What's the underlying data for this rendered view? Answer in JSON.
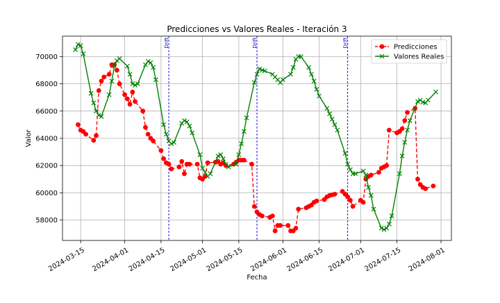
{
  "chart_data": {
    "type": "line",
    "title": "Predicciones vs Valores Reales - Iteración 3",
    "xlabel": "Fecha",
    "ylabel": "Valor",
    "xlim": [
      "2024-03-08",
      "2024-08-05"
    ],
    "ylim": [
      56500,
      71500
    ],
    "xticks": [
      "2024-03-15",
      "2024-04-01",
      "2024-04-15",
      "2024-05-01",
      "2024-05-15",
      "2024-06-01",
      "2024-06-15",
      "2024-07-01",
      "2024-07-15",
      "2024-08-01"
    ],
    "yticks": [
      58000,
      60000,
      62000,
      64000,
      66000,
      68000,
      70000
    ],
    "ytick_labels": [
      "58000",
      "60000",
      "62000",
      "64000",
      "66000",
      "68000",
      "70000"
    ],
    "grid": true,
    "legend": "top-right",
    "drift_label": "Drift",
    "drift_dates": [
      "2024-04-18",
      "2024-05-22",
      "2024-06-26"
    ],
    "series": [
      {
        "name": "Predicciones",
        "color": "#ff0000",
        "style": "dashed",
        "marker": "circle",
        "points": [
          [
            "2024-03-14",
            65000
          ],
          [
            "2024-03-15",
            64600
          ],
          [
            "2024-03-16",
            64500
          ],
          [
            "2024-03-17",
            64300
          ],
          [
            "2024-03-20",
            63850
          ],
          [
            "2024-03-21",
            64200
          ],
          [
            "2024-03-22",
            67500
          ],
          [
            "2024-03-23",
            68200
          ],
          [
            "2024-03-24",
            68500
          ],
          [
            "2024-03-26",
            68700
          ],
          [
            "2024-03-27",
            69400
          ],
          [
            "2024-03-28",
            69400
          ],
          [
            "2024-03-29",
            69000
          ],
          [
            "2024-03-30",
            68000
          ],
          [
            "2024-04-01",
            67200
          ],
          [
            "2024-04-02",
            66900
          ],
          [
            "2024-04-03",
            66500
          ],
          [
            "2024-04-04",
            67400
          ],
          [
            "2024-04-05",
            66700
          ],
          [
            "2024-04-08",
            66000
          ],
          [
            "2024-04-09",
            64800
          ],
          [
            "2024-04-10",
            64300
          ],
          [
            "2024-04-11",
            64000
          ],
          [
            "2024-04-12",
            63800
          ],
          [
            "2024-04-15",
            63100
          ],
          [
            "2024-04-16",
            62500
          ],
          [
            "2024-04-17",
            62200
          ],
          [
            "2024-04-18",
            62100
          ],
          [
            "2024-04-19",
            61750
          ],
          [
            "2024-04-22",
            61900
          ],
          [
            "2024-04-23",
            62300
          ],
          [
            "2024-04-24",
            61400
          ],
          [
            "2024-04-25",
            62100
          ],
          [
            "2024-04-26",
            62100
          ],
          [
            "2024-04-29",
            62100
          ],
          [
            "2024-04-30",
            61100
          ],
          [
            "2024-05-01",
            61000
          ],
          [
            "2024-05-02",
            61200
          ],
          [
            "2024-05-03",
            62200
          ],
          [
            "2024-05-06",
            62250
          ],
          [
            "2024-05-07",
            62300
          ],
          [
            "2024-05-08",
            62100
          ],
          [
            "2024-05-09",
            62200
          ],
          [
            "2024-05-10",
            62000
          ],
          [
            "2024-05-13",
            62100
          ],
          [
            "2024-05-14",
            62250
          ],
          [
            "2024-05-15",
            62400
          ],
          [
            "2024-05-16",
            62400
          ],
          [
            "2024-05-17",
            62400
          ],
          [
            "2024-05-20",
            62100
          ],
          [
            "2024-05-21",
            59000
          ],
          [
            "2024-05-22",
            58600
          ],
          [
            "2024-05-23",
            58400
          ],
          [
            "2024-05-24",
            58300
          ],
          [
            "2024-05-27",
            58200
          ],
          [
            "2024-05-28",
            58300
          ],
          [
            "2024-05-29",
            57200
          ],
          [
            "2024-05-30",
            57600
          ],
          [
            "2024-05-31",
            57600
          ],
          [
            "2024-06-03",
            57600
          ],
          [
            "2024-06-04",
            57200
          ],
          [
            "2024-06-05",
            57200
          ],
          [
            "2024-06-06",
            57400
          ],
          [
            "2024-06-07",
            58800
          ],
          [
            "2024-06-10",
            58900
          ],
          [
            "2024-06-11",
            59000
          ],
          [
            "2024-06-12",
            59100
          ],
          [
            "2024-06-13",
            59300
          ],
          [
            "2024-06-14",
            59400
          ],
          [
            "2024-06-17",
            59500
          ],
          [
            "2024-06-18",
            59700
          ],
          [
            "2024-06-19",
            59800
          ],
          [
            "2024-06-20",
            59850
          ],
          [
            "2024-06-21",
            59900
          ],
          [
            "2024-06-24",
            60100
          ],
          [
            "2024-06-25",
            59900
          ],
          [
            "2024-06-26",
            59700
          ],
          [
            "2024-06-27",
            59450
          ],
          [
            "2024-06-28",
            59000
          ],
          [
            "2024-07-01",
            59450
          ],
          [
            "2024-07-02",
            59300
          ],
          [
            "2024-07-03",
            61000
          ],
          [
            "2024-07-04",
            61200
          ],
          [
            "2024-07-05",
            61300
          ],
          [
            "2024-07-08",
            61500
          ],
          [
            "2024-07-09",
            61800
          ],
          [
            "2024-07-10",
            61900
          ],
          [
            "2024-07-11",
            62000
          ],
          [
            "2024-07-12",
            64600
          ],
          [
            "2024-07-15",
            64400
          ],
          [
            "2024-07-16",
            64500
          ],
          [
            "2024-07-17",
            64700
          ],
          [
            "2024-07-18",
            65300
          ],
          [
            "2024-07-19",
            65900
          ],
          [
            "2024-07-22",
            66200
          ],
          [
            "2024-07-23",
            61000
          ],
          [
            "2024-07-24",
            60600
          ],
          [
            "2024-07-25",
            60400
          ],
          [
            "2024-07-26",
            60300
          ],
          [
            "2024-07-29",
            60500
          ]
        ]
      },
      {
        "name": "Valores Reales",
        "color": "#008000",
        "style": "solid",
        "marker": "x",
        "points": [
          [
            "2024-03-13",
            70500
          ],
          [
            "2024-03-14",
            70900
          ],
          [
            "2024-03-15",
            70800
          ],
          [
            "2024-03-16",
            70200
          ],
          [
            "2024-03-19",
            67300
          ],
          [
            "2024-03-20",
            66600
          ],
          [
            "2024-03-21",
            66000
          ],
          [
            "2024-03-22",
            65700
          ],
          [
            "2024-03-23",
            65600
          ],
          [
            "2024-03-26",
            67200
          ],
          [
            "2024-03-27",
            68200
          ],
          [
            "2024-03-28",
            69300
          ],
          [
            "2024-03-29",
            69700
          ],
          [
            "2024-03-30",
            69850
          ],
          [
            "2024-04-02",
            69300
          ],
          [
            "2024-04-03",
            68700
          ],
          [
            "2024-04-04",
            68000
          ],
          [
            "2024-04-05",
            67900
          ],
          [
            "2024-04-06",
            68000
          ],
          [
            "2024-04-09",
            69400
          ],
          [
            "2024-04-10",
            69650
          ],
          [
            "2024-04-11",
            69550
          ],
          [
            "2024-04-12",
            69200
          ],
          [
            "2024-04-13",
            68300
          ],
          [
            "2024-04-16",
            65000
          ],
          [
            "2024-04-17",
            64300
          ],
          [
            "2024-04-18",
            63800
          ],
          [
            "2024-04-19",
            63600
          ],
          [
            "2024-04-20",
            63700
          ],
          [
            "2024-04-23",
            65100
          ],
          [
            "2024-04-24",
            65300
          ],
          [
            "2024-04-25",
            65200
          ],
          [
            "2024-04-26",
            64900
          ],
          [
            "2024-04-27",
            64400
          ],
          [
            "2024-04-30",
            62800
          ],
          [
            "2024-05-01",
            61800
          ],
          [
            "2024-05-02",
            61500
          ],
          [
            "2024-05-03",
            61200
          ],
          [
            "2024-05-04",
            61400
          ],
          [
            "2024-05-07",
            62700
          ],
          [
            "2024-05-08",
            62800
          ],
          [
            "2024-05-09",
            62500
          ],
          [
            "2024-05-10",
            62100
          ],
          [
            "2024-05-11",
            61900
          ],
          [
            "2024-05-14",
            62100
          ],
          [
            "2024-05-15",
            62800
          ],
          [
            "2024-05-16",
            63600
          ],
          [
            "2024-05-17",
            64500
          ],
          [
            "2024-05-18",
            65500
          ],
          [
            "2024-05-21",
            68100
          ],
          [
            "2024-05-22",
            68700
          ],
          [
            "2024-05-23",
            69100
          ],
          [
            "2024-05-24",
            69000
          ],
          [
            "2024-05-25",
            68950
          ],
          [
            "2024-05-28",
            68700
          ],
          [
            "2024-05-29",
            68500
          ],
          [
            "2024-05-30",
            68300
          ],
          [
            "2024-05-31",
            68100
          ],
          [
            "2024-06-01",
            68300
          ],
          [
            "2024-06-04",
            68700
          ],
          [
            "2024-06-05",
            69200
          ],
          [
            "2024-06-06",
            69800
          ],
          [
            "2024-06-07",
            70000
          ],
          [
            "2024-06-08",
            70000
          ],
          [
            "2024-06-11",
            69200
          ],
          [
            "2024-06-12",
            68700
          ],
          [
            "2024-06-13",
            68200
          ],
          [
            "2024-06-14",
            67600
          ],
          [
            "2024-06-15",
            67100
          ],
          [
            "2024-06-18",
            66200
          ],
          [
            "2024-06-19",
            65800
          ],
          [
            "2024-06-20",
            65400
          ],
          [
            "2024-06-21",
            65000
          ],
          [
            "2024-06-22",
            64600
          ],
          [
            "2024-06-25",
            62900
          ],
          [
            "2024-06-26",
            62100
          ],
          [
            "2024-06-27",
            61700
          ],
          [
            "2024-06-28",
            61400
          ],
          [
            "2024-06-29",
            61400
          ],
          [
            "2024-07-02",
            61600
          ],
          [
            "2024-07-03",
            61300
          ],
          [
            "2024-07-04",
            60400
          ],
          [
            "2024-07-05",
            59800
          ],
          [
            "2024-07-06",
            58800
          ],
          [
            "2024-07-09",
            57400
          ],
          [
            "2024-07-10",
            57300
          ],
          [
            "2024-07-11",
            57400
          ],
          [
            "2024-07-12",
            57700
          ],
          [
            "2024-07-13",
            58300
          ],
          [
            "2024-07-16",
            61400
          ],
          [
            "2024-07-17",
            62700
          ],
          [
            "2024-07-18",
            63700
          ],
          [
            "2024-07-19",
            64600
          ],
          [
            "2024-07-20",
            65300
          ],
          [
            "2024-07-23",
            66700
          ],
          [
            "2024-07-24",
            66800
          ],
          [
            "2024-07-25",
            66650
          ],
          [
            "2024-07-26",
            66600
          ],
          [
            "2024-07-27",
            66800
          ],
          [
            "2024-07-30",
            67400
          ]
        ]
      }
    ]
  }
}
